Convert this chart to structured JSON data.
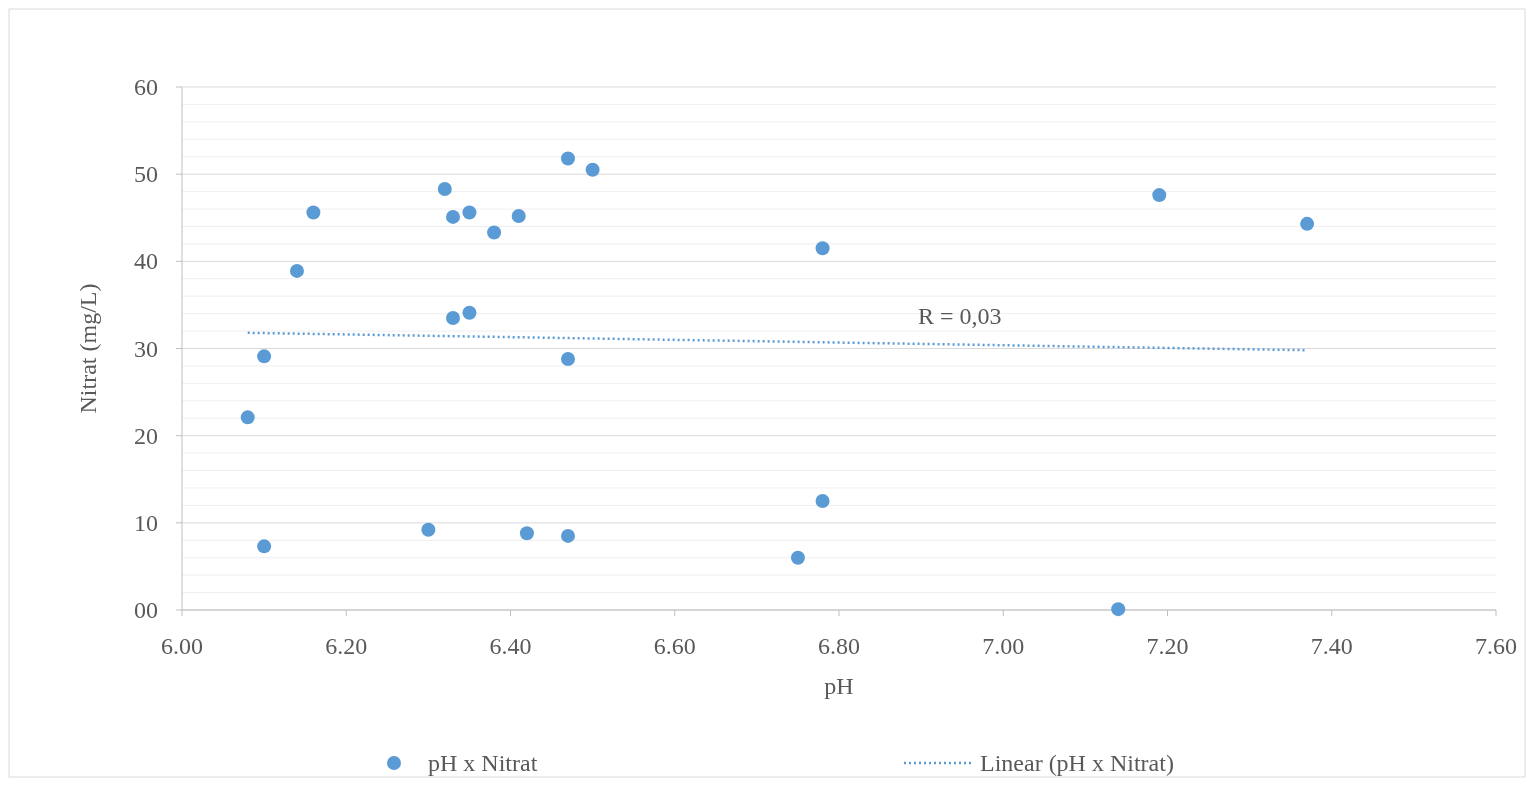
{
  "chart_data": {
    "type": "scatter",
    "xlabel": "pH",
    "ylabel": "Nitrat (mg/L)",
    "xlim": [
      6.0,
      7.6
    ],
    "xticks": [
      {
        "value": 6.0,
        "label": "6.00"
      },
      {
        "value": 6.2,
        "label": "6.20"
      },
      {
        "value": 6.4,
        "label": "6.40"
      },
      {
        "value": 6.6,
        "label": "6.60"
      },
      {
        "value": 6.8,
        "label": "6.80"
      },
      {
        "value": 7.0,
        "label": "7.00"
      },
      {
        "value": 7.2,
        "label": "7.20"
      },
      {
        "value": 7.4,
        "label": "7.40"
      },
      {
        "value": 7.6,
        "label": "7.60"
      }
    ],
    "ylim": [
      0,
      60
    ],
    "yticks": [
      {
        "value": 0,
        "label": "00"
      },
      {
        "value": 2,
        "label": null
      },
      {
        "value": 4,
        "label": null
      },
      {
        "value": 6,
        "label": null
      },
      {
        "value": 8,
        "label": null
      },
      10,
      {
        "value": 12,
        "label": null
      },
      {
        "value": 14,
        "label": null
      },
      {
        "value": 16,
        "label": null
      },
      {
        "value": 18,
        "label": null
      },
      20,
      {
        "value": 22,
        "label": null
      },
      {
        "value": 24,
        "label": null
      },
      {
        "value": 26,
        "label": null
      },
      {
        "value": 28,
        "label": null
      },
      30,
      {
        "value": 32,
        "label": null
      },
      {
        "value": 34,
        "label": null
      },
      {
        "value": 36,
        "label": null
      },
      {
        "value": 38,
        "label": null
      },
      40,
      {
        "value": 42,
        "label": null
      },
      {
        "value": 44,
        "label": null
      },
      {
        "value": 46,
        "label": null
      },
      {
        "value": 48,
        "label": null
      },
      50,
      {
        "value": 52,
        "label": null
      },
      {
        "value": 54,
        "label": null
      },
      {
        "value": 56,
        "label": null
      },
      {
        "value": 58,
        "label": null
      },
      60
    ],
    "grid": "y",
    "legend": "bottom",
    "series": [
      {
        "name": "pH x Nitrat",
        "marker": "circle",
        "color": "#5b9bd5",
        "x": [
          6.08,
          6.1,
          6.1,
          6.14,
          6.16,
          6.3,
          6.32,
          6.33,
          6.33,
          6.35,
          6.35,
          6.38,
          6.41,
          6.42,
          6.47,
          6.47,
          6.47,
          6.5,
          6.75,
          6.78,
          6.78,
          7.14,
          7.19,
          7.37
        ],
        "values": [
          22.1,
          29.1,
          7.3,
          38.9,
          45.6,
          9.2,
          48.3,
          45.1,
          33.5,
          45.6,
          34.1,
          43.3,
          45.2,
          8.8,
          51.8,
          28.8,
          8.5,
          50.5,
          6.0,
          41.5,
          12.5,
          0.1,
          47.6,
          44.3
        ]
      },
      {
        "name": "Linear (pH x Nitrat)",
        "type": "line",
        "line_style": "dotted",
        "color": "#5b9bd5",
        "x": [
          6.08,
          7.37
        ],
        "values": [
          31.8,
          29.8
        ]
      }
    ],
    "annotations": [
      "R = 0,03"
    ]
  }
}
